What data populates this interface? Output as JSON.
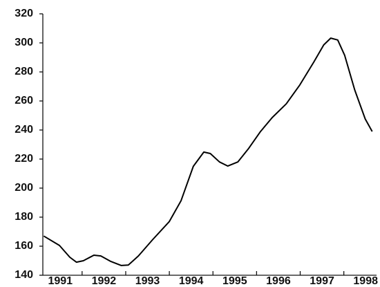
{
  "chart_data": {
    "type": "line",
    "categories": [
      "1991",
      "1992",
      "1993",
      "1994",
      "1995",
      "1996",
      "1997",
      "1998"
    ],
    "x": [
      1991.12,
      1991.48,
      1991.72,
      1991.87,
      1992.03,
      1992.27,
      1992.43,
      1992.66,
      1992.9,
      1993.06,
      1993.29,
      1993.61,
      1994.0,
      1994.27,
      1994.55,
      1994.79,
      1994.94,
      1995.15,
      1995.34,
      1995.57,
      1995.81,
      1996.09,
      1996.36,
      1996.68,
      1996.99,
      1997.31,
      1997.54,
      1997.7,
      1997.86,
      1998.02,
      1998.25,
      1998.49,
      1998.65
    ],
    "values": [
      167,
      160.5,
      152.4,
      149,
      150,
      153.8,
      153.3,
      149.5,
      146.7,
      147,
      153.3,
      164.3,
      177,
      191.4,
      215,
      224.8,
      223.8,
      218,
      215.2,
      218,
      227,
      239,
      248.6,
      258,
      271,
      286.7,
      298.6,
      303.3,
      302,
      291.4,
      267.6,
      247.6,
      239
    ],
    "color": "#000000",
    "xlim": [
      1991.1,
      1998.75
    ],
    "ylim": [
      140,
      320
    ],
    "yticks": [
      140,
      160,
      180,
      200,
      220,
      240,
      260,
      280,
      300,
      320
    ]
  }
}
